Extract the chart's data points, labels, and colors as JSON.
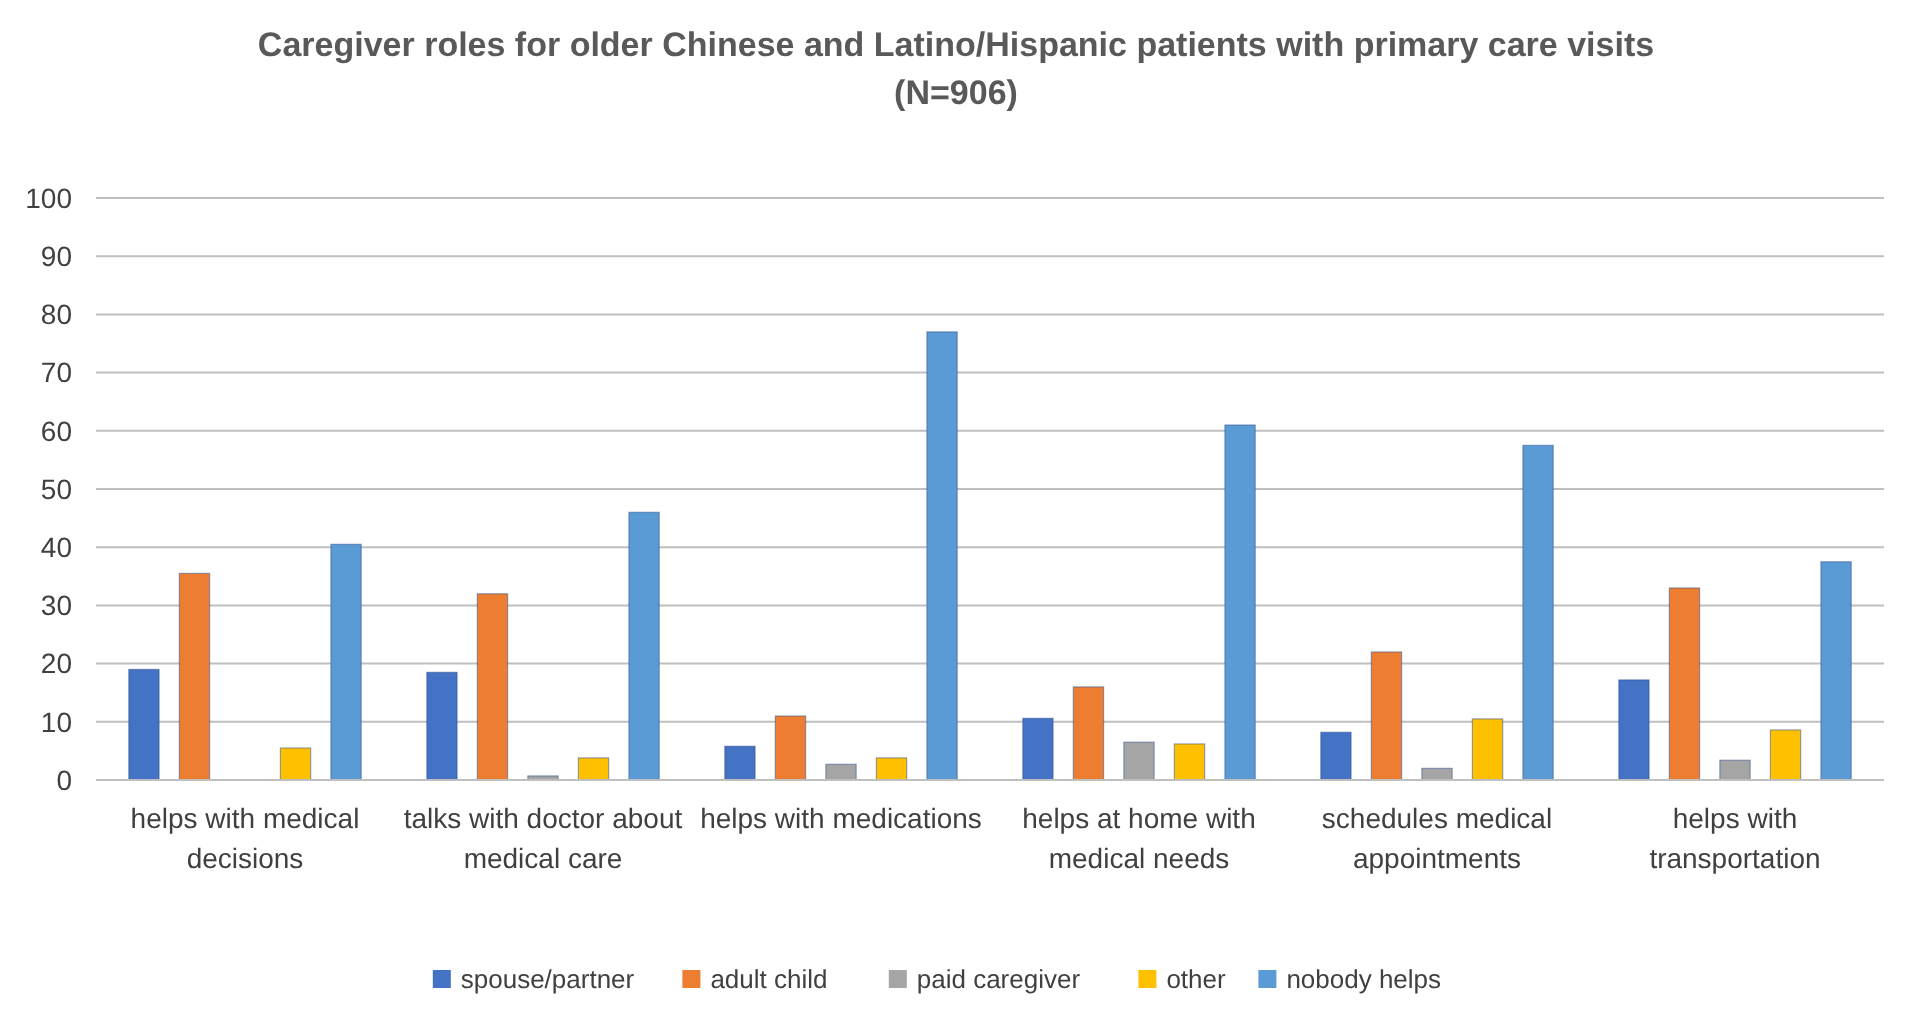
{
  "chart_data": {
    "type": "bar",
    "title": "Caregiver roles for older Chinese and Latino/Hispanic patients with primary care visits",
    "subtitle": "(N=906)",
    "categories": [
      "helps with medical decisions",
      "talks with doctor about medical care",
      "helps with medications",
      "helps at home with medical needs",
      "schedules medical appointments",
      "helps with transportation"
    ],
    "series": [
      {
        "name": "spouse/partner",
        "color": "#4472c4",
        "values": [
          19,
          18.5,
          5.8,
          10.6,
          8.2,
          17.2
        ]
      },
      {
        "name": "adult child",
        "color": "#ed7d31",
        "values": [
          35.5,
          32,
          11,
          16,
          22,
          33
        ]
      },
      {
        "name": "paid caregiver",
        "color": "#a5a5a5",
        "values": [
          0,
          0.7,
          2.7,
          6.5,
          2,
          3.4
        ]
      },
      {
        "name": "other",
        "color": "#ffc000",
        "values": [
          5.5,
          3.8,
          3.8,
          6.2,
          10.5,
          8.6
        ]
      },
      {
        "name": "nobody helps",
        "color": "#5b9bd5",
        "values": [
          40.5,
          46,
          77,
          61,
          57.5,
          37.5
        ]
      }
    ],
    "ylim": [
      0,
      100
    ],
    "yticks": [
      0,
      10,
      20,
      30,
      40,
      50,
      60,
      70,
      80,
      90,
      100
    ],
    "grid": "y",
    "legend": "bottom"
  }
}
